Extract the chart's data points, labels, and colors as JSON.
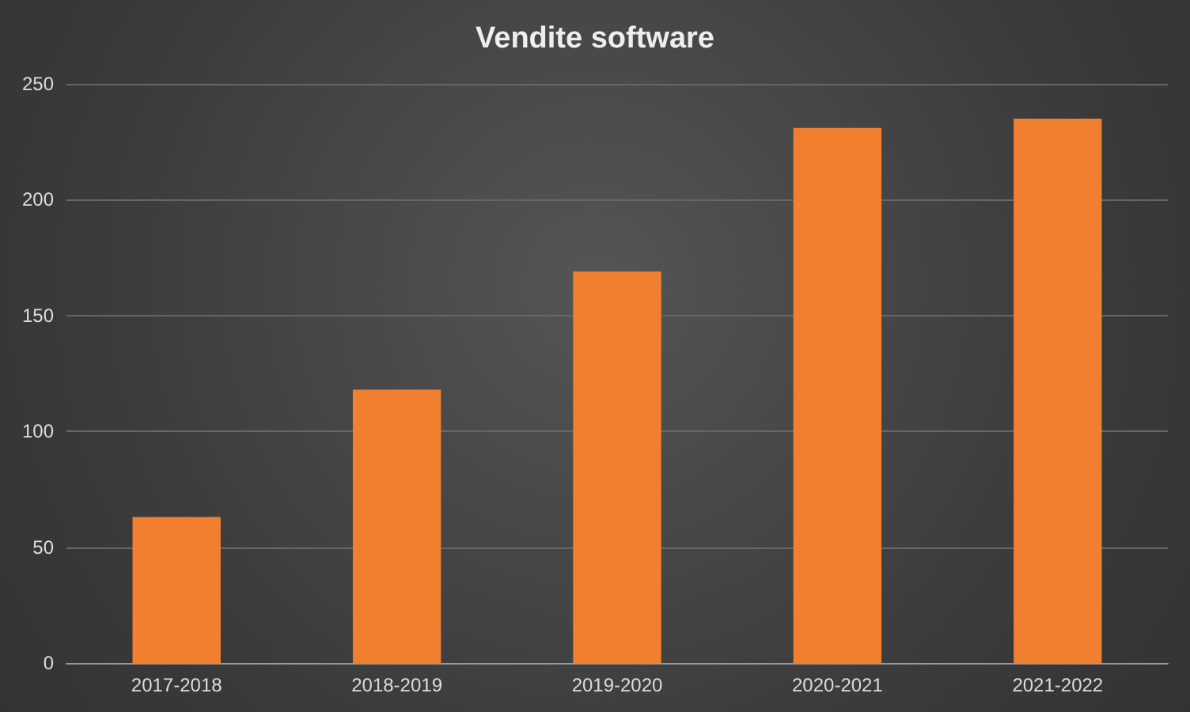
{
  "chart_data": {
    "type": "bar",
    "title": "Vendite software",
    "categories": [
      "2017-2018",
      "2018-2019",
      "2019-2020",
      "2020-2021",
      "2021-2022"
    ],
    "values": [
      63,
      118,
      169,
      231,
      235
    ],
    "color": "#f07f30",
    "ylim": [
      0,
      250
    ],
    "yticks": [
      0,
      50,
      100,
      150,
      200,
      250
    ],
    "grid": "y"
  }
}
